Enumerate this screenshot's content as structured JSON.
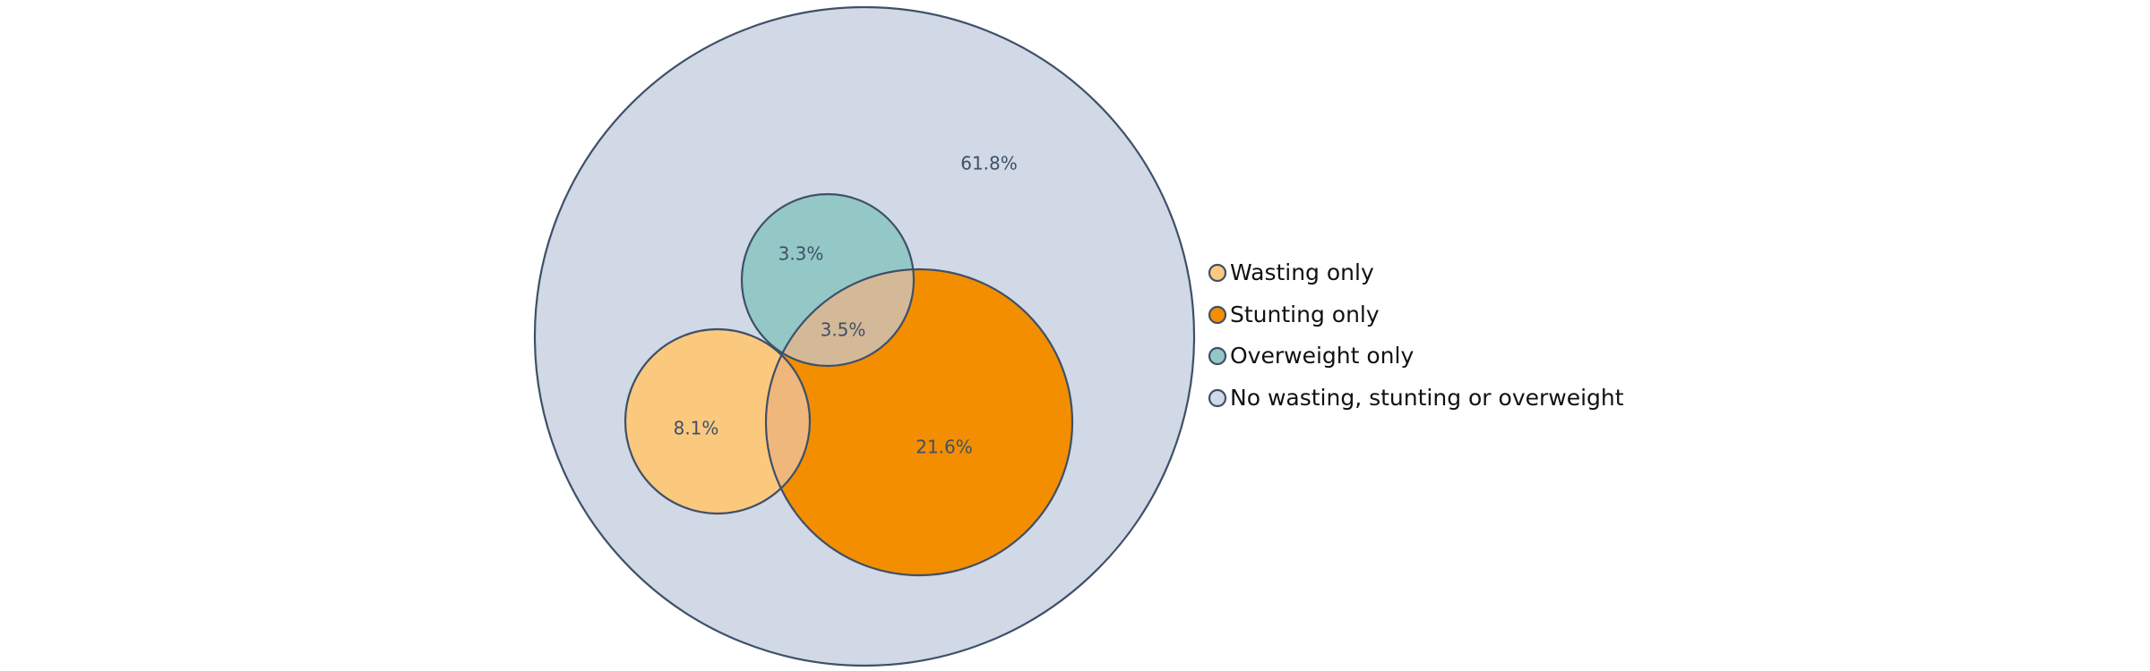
{
  "diagram": {
    "type": "nested-venn",
    "colors": {
      "outline": "#3f5068",
      "no_condition": "#d0d9e5",
      "wasting": "#fbc97e",
      "stunting": "#f28e00",
      "overweight": "#93c8c7",
      "overlap_overweight_stunting": "#d4b998",
      "overlap_wasting_stunting": "#f0b77c",
      "region_label_color": "#3f5068"
    },
    "regions": [
      {
        "id": "none",
        "label": "61.8%"
      },
      {
        "id": "overweight",
        "label": "3.3%"
      },
      {
        "id": "overweight-stunting",
        "label": "3.5%"
      },
      {
        "id": "wasting",
        "label": "8.1%"
      },
      {
        "id": "stunting",
        "label": "21.6%"
      }
    ],
    "legend": [
      {
        "id": "wasting",
        "label": "Wasting only",
        "color": "#fbc97e"
      },
      {
        "id": "stunting",
        "label": "Stunting only",
        "color": "#f28e00"
      },
      {
        "id": "overweight",
        "label": "Overweight only",
        "color": "#93c8c7"
      },
      {
        "id": "none",
        "label": "No wasting, stunting or overweight",
        "color": "#d0d9e5"
      }
    ]
  }
}
